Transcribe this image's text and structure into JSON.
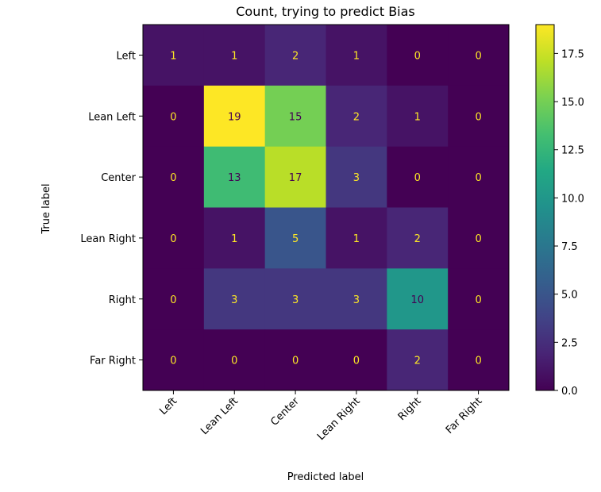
{
  "chart_data": {
    "type": "heatmap",
    "title": "Count, trying to predict Bias",
    "xlabel": "Predicted label",
    "ylabel": "True label",
    "x_categories": [
      "Left",
      "Lean Left",
      "Center",
      "Lean Right",
      "Right",
      "Far Right"
    ],
    "y_categories": [
      "Left",
      "Lean Left",
      "Center",
      "Lean Right",
      "Right",
      "Far Right"
    ],
    "values": [
      [
        1,
        1,
        2,
        1,
        0,
        0
      ],
      [
        0,
        19,
        15,
        2,
        1,
        0
      ],
      [
        0,
        13,
        17,
        3,
        0,
        0
      ],
      [
        0,
        1,
        5,
        1,
        2,
        0
      ],
      [
        0,
        3,
        3,
        3,
        10,
        0
      ],
      [
        0,
        0,
        0,
        0,
        2,
        0
      ]
    ],
    "colorbar": {
      "min": 0,
      "max": 19,
      "ticks": [
        "0.0",
        "2.5",
        "5.0",
        "7.5",
        "10.0",
        "12.5",
        "15.0",
        "17.5"
      ],
      "colormap": "viridis"
    },
    "text_color_light": "#fde725",
    "text_color_dark": "#440154"
  }
}
